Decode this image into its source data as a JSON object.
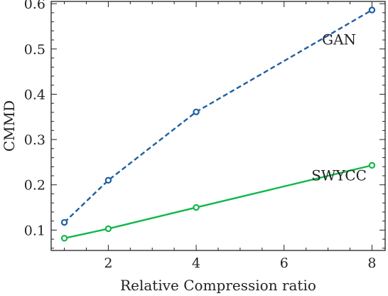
{
  "chart_data": {
    "type": "line",
    "xlabel": "Relative Compression ratio",
    "ylabel": "CMMD",
    "xlim": [
      0.7,
      8.3
    ],
    "ylim": [
      0.055,
      0.605
    ],
    "xticks": [
      2,
      4,
      6,
      8
    ],
    "yticks": [
      0.1,
      0.2,
      0.3,
      0.4,
      0.5,
      0.6
    ],
    "xtick_labels": [
      "2",
      "4",
      "6",
      "8"
    ],
    "ytick_labels": [
      "0.1",
      "0.2",
      "0.3",
      "0.4",
      "0.5",
      "0.6"
    ],
    "grid": false,
    "series": [
      {
        "name": "GAN",
        "color": "#1f5fa0",
        "line_style": "dashed",
        "x": [
          1,
          2,
          4,
          8
        ],
        "y": [
          0.117,
          0.21,
          0.361,
          0.586
        ]
      },
      {
        "name": "SWYCC",
        "color": "#10b84a",
        "line_style": "solid",
        "x": [
          1,
          2,
          4,
          8
        ],
        "y": [
          0.082,
          0.103,
          0.15,
          0.243
        ]
      }
    ],
    "annotations": [
      {
        "text": "GAN",
        "x": 7.25,
        "y": 0.51
      },
      {
        "text": "SWYCC",
        "x": 7.25,
        "y": 0.21
      }
    ]
  }
}
